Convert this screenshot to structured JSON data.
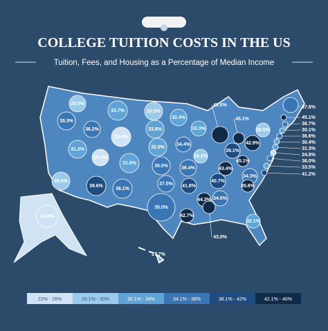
{
  "header": {
    "title": "COLLEGE TUITION COSTS IN THE US",
    "subtitle": "Tuition, Fees, and Housing as a Percentage of Median Income"
  },
  "states": [
    {
      "value": 29.0,
      "label": "29.0%"
    },
    {
      "value": 33.7,
      "label": "33.7%"
    },
    {
      "value": 30.0,
      "label": "30.0%"
    },
    {
      "value": 32.4,
      "label": "32.4%"
    },
    {
      "value": 33.3,
      "label": "33.3%"
    },
    {
      "value": 43.6,
      "label": "43.6%"
    },
    {
      "value": 45.1,
      "label": "45.1%"
    },
    {
      "value": 37.6,
      "label": "37.6%"
    },
    {
      "value": 35.3,
      "label": "35.3%"
    },
    {
      "value": 36.2,
      "label": "36.2%"
    },
    {
      "value": 25.4,
      "label": "25.4%"
    },
    {
      "value": 33.8,
      "label": "33.8%"
    },
    {
      "value": 28.5,
      "label": "28.5%"
    },
    {
      "value": 45.1,
      "label": "45.1%"
    },
    {
      "value": 36.7,
      "label": "36.7%"
    },
    {
      "value": 30.1,
      "label": "30.1%"
    },
    {
      "value": 36.6,
      "label": "36.6%"
    },
    {
      "value": 30.4,
      "label": "30.4%"
    },
    {
      "value": 31.3,
      "label": "31.3%"
    },
    {
      "value": 24.8,
      "label": "24.8%"
    },
    {
      "value": 36.0,
      "label": "36.0%"
    },
    {
      "value": 33.5,
      "label": "33.5%"
    },
    {
      "value": 41.2,
      "label": "41.2%"
    },
    {
      "value": 31.2,
      "label": "31.2%"
    },
    {
      "value": 25.4,
      "label": "25.4%"
    },
    {
      "value": 32.0,
      "label": "32.0%"
    },
    {
      "value": 34.4,
      "label": "34.4%"
    },
    {
      "value": 28.2,
      "label": "28.2%"
    },
    {
      "value": 39.1,
      "label": "39.1%"
    },
    {
      "value": 42.9,
      "label": "42.9%"
    },
    {
      "value": 29.0,
      "label": "29.0%"
    },
    {
      "value": 31.6,
      "label": "31.6%"
    },
    {
      "value": 35.0,
      "label": "35.0%"
    },
    {
      "value": 36.4,
      "label": "36.4%"
    },
    {
      "value": 43.4,
      "label": "43.4%"
    },
    {
      "value": 45.1,
      "label": "45.1%"
    },
    {
      "value": 34.3,
      "label": "34.3%"
    },
    {
      "value": 40.7,
      "label": "40.7%"
    },
    {
      "value": 39.6,
      "label": "39.6%"
    },
    {
      "value": 36.1,
      "label": "36.1%"
    },
    {
      "value": 37.5,
      "label": "37.5%"
    },
    {
      "value": 41.8,
      "label": "41.8%"
    },
    {
      "value": 44.3,
      "label": "44.3%"
    },
    {
      "value": 34.6,
      "label": "34.6%"
    },
    {
      "value": 45.6,
      "label": "45.6%"
    },
    {
      "value": 35.0,
      "label": "35.0%"
    },
    {
      "value": 42.7,
      "label": "42.7%"
    },
    {
      "value": 43.0,
      "label": "43.0%"
    },
    {
      "value": 32.1,
      "label": "32.1%"
    },
    {
      "value": 22.8,
      "label": "22.8%"
    },
    {
      "value": 27.7,
      "label": "27.7%"
    }
  ],
  "legend": [
    {
      "min": 22,
      "max": 26,
      "label": "22% - 26%",
      "color": "#cfe3f5"
    },
    {
      "min": 26.1,
      "max": 30,
      "label": "26.1% - 30%",
      "color": "#9ccaeb"
    },
    {
      "min": 30.1,
      "max": 34,
      "label": "30.1% - 34%",
      "color": "#5fa3d7"
    },
    {
      "min": 34.1,
      "max": 38,
      "label": "34.1% - 38%",
      "color": "#3a76b5"
    },
    {
      "min": 38.1,
      "max": 42,
      "label": "38.1% - 42%",
      "color": "#1e4c80"
    },
    {
      "min": 42.1,
      "max": 46,
      "label": "42.1% - 46%",
      "color": "#102a4a"
    }
  ]
}
